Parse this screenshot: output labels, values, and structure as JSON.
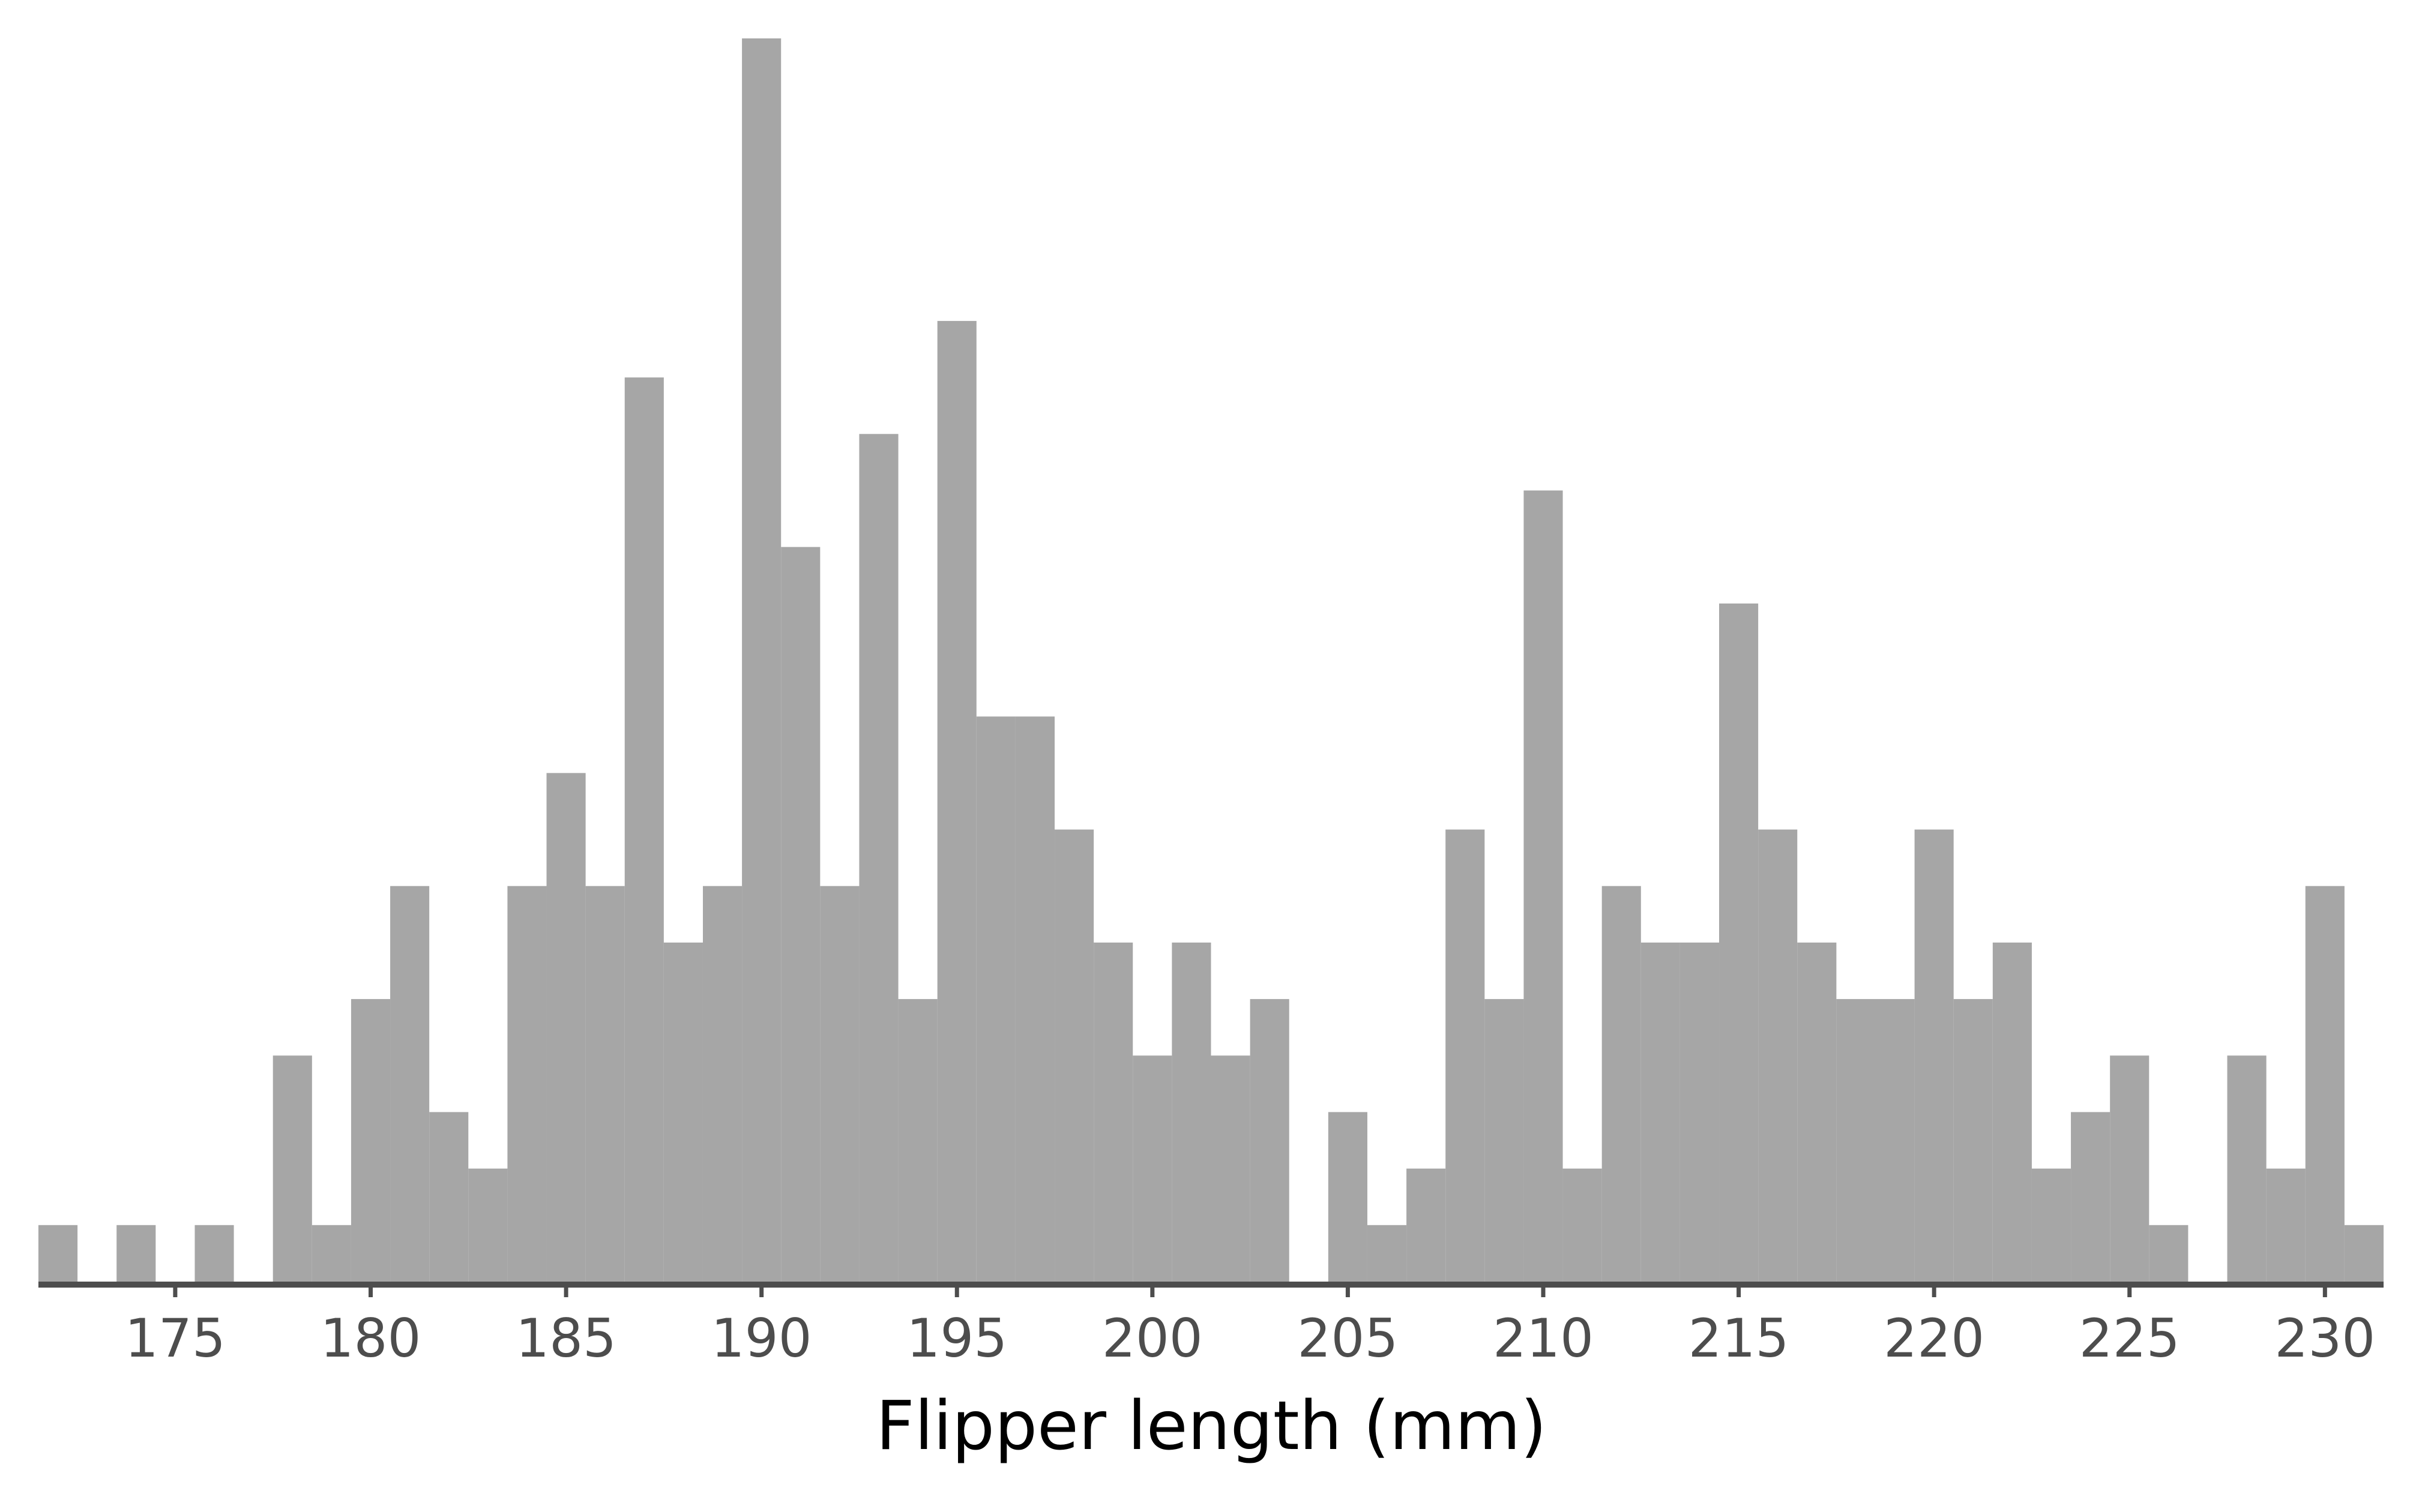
{
  "chart_data": {
    "type": "histogram",
    "x_label": "Flipper length (mm)",
    "color": "#a6a6a6",
    "bins": [
      171.5,
      172.5,
      173.5,
      174.5,
      175.5,
      176.5,
      177.5,
      178.5,
      179.5,
      180.5,
      181.5,
      182.5,
      183.5,
      184.5,
      185.5,
      186.5,
      187.5,
      188.5,
      189.5,
      190.5,
      191.5,
      192.5,
      193.5,
      194.5,
      195.5,
      196.5,
      197.5,
      198.5,
      199.5,
      200.5,
      201.5,
      202.5,
      203.5,
      204.5,
      205.5,
      206.5,
      207.5,
      208.5,
      209.5,
      210.5,
      211.5,
      212.5,
      213.5,
      214.5,
      215.5,
      216.5,
      217.5,
      218.5,
      219.5,
      220.5,
      221.5,
      222.5,
      223.5,
      224.5,
      225.5,
      226.5,
      227.5,
      228.5,
      229.5,
      230.5,
      231.5
    ],
    "values": [
      1,
      0,
      1,
      0,
      1,
      0,
      4,
      1,
      5,
      7,
      3,
      2,
      7,
      9,
      7,
      16,
      6,
      7,
      22,
      13,
      7,
      15,
      5,
      17,
      10,
      10,
      8,
      6,
      4,
      6,
      4,
      5,
      0,
      3,
      1,
      2,
      8,
      5,
      14,
      2,
      7,
      6,
      6,
      12,
      8,
      6,
      5,
      5,
      8,
      5,
      6,
      2,
      3,
      4,
      1,
      0,
      4,
      2,
      7,
      1
    ],
    "xlim": [
      171.5,
      231.5
    ],
    "xticks": [
      175,
      180,
      185,
      190,
      195,
      200,
      205,
      210,
      215,
      220,
      225,
      230
    ],
    "ylim": [
      0,
      22
    ]
  }
}
